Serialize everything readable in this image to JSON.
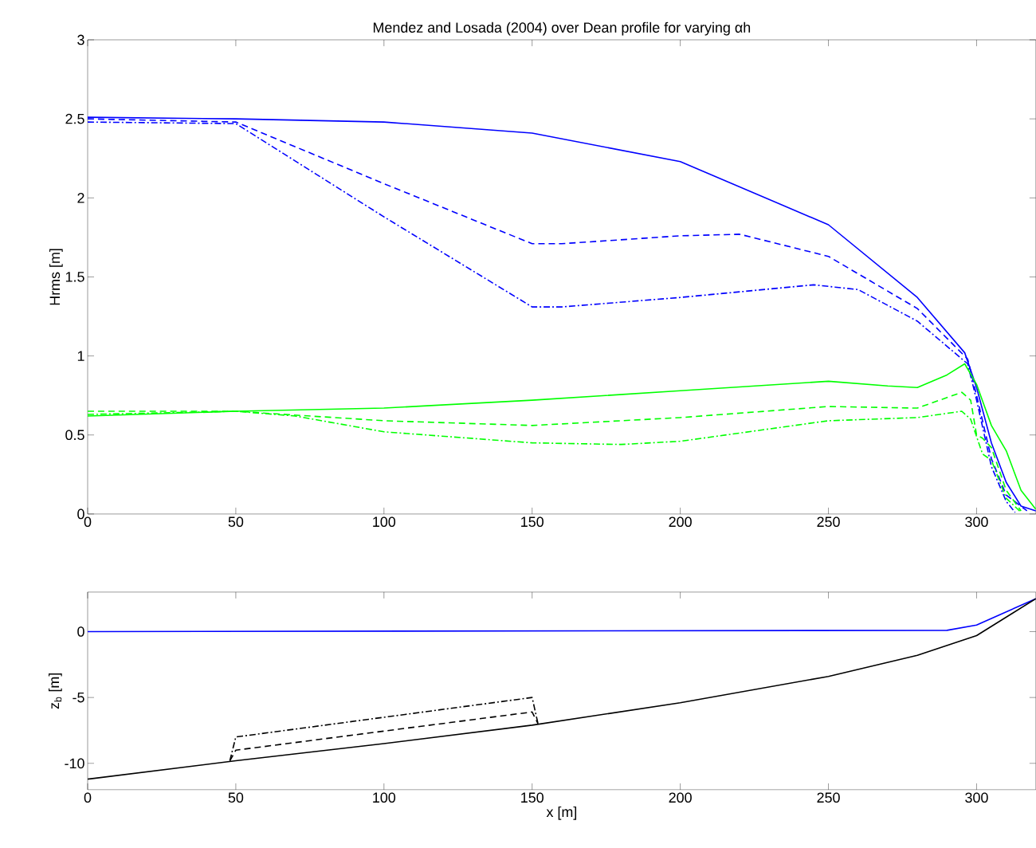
{
  "chart_data": [
    {
      "type": "line",
      "title": "Mendez and Losada (2004) over Dean profile for varying αh",
      "ylabel": "Hrms [m]",
      "xlim": [
        0,
        320
      ],
      "ylim": [
        0,
        3
      ],
      "xticks": [
        0,
        50,
        100,
        150,
        200,
        250,
        300
      ],
      "yticks": [
        0,
        0.5,
        1,
        1.5,
        2,
        2.5,
        3
      ],
      "legend": false,
      "grid": false,
      "series": [
        {
          "color": "#0000ff",
          "line_style": "solid",
          "x": [
            0,
            50,
            100,
            150,
            200,
            250,
            280,
            296,
            300,
            305,
            310,
            315,
            320
          ],
          "values": [
            2.51,
            2.5,
            2.48,
            2.41,
            2.23,
            1.83,
            1.37,
            1.02,
            0.8,
            0.45,
            0.2,
            0.05,
            0.02
          ]
        },
        {
          "color": "#0000ff",
          "line_style": "dashed",
          "x": [
            0,
            50,
            100,
            150,
            160,
            200,
            220,
            250,
            280,
            297,
            300,
            305,
            310,
            317
          ],
          "values": [
            2.5,
            2.48,
            2.09,
            1.71,
            1.71,
            1.76,
            1.77,
            1.63,
            1.3,
            0.98,
            0.75,
            0.35,
            0.12,
            0.02
          ]
        },
        {
          "color": "#0000ff",
          "line_style": "dashdot",
          "x": [
            0,
            50,
            100,
            150,
            160,
            200,
            245,
            260,
            280,
            297,
            300,
            305,
            310,
            313
          ],
          "values": [
            2.48,
            2.47,
            1.88,
            1.31,
            1.31,
            1.37,
            1.45,
            1.42,
            1.22,
            0.95,
            0.72,
            0.3,
            0.08,
            0.01
          ]
        },
        {
          "color": "#00ff00",
          "line_style": "solid",
          "x": [
            0,
            50,
            100,
            150,
            200,
            250,
            270,
            280,
            290,
            296,
            300,
            305,
            310,
            315,
            320
          ],
          "values": [
            0.62,
            0.65,
            0.67,
            0.72,
            0.78,
            0.84,
            0.81,
            0.8,
            0.88,
            0.95,
            0.82,
            0.56,
            0.4,
            0.15,
            0.03
          ]
        },
        {
          "color": "#00ff00",
          "line_style": "dashed",
          "x": [
            0,
            50,
            100,
            150,
            200,
            250,
            280,
            295,
            298,
            300,
            302,
            305,
            310,
            315
          ],
          "values": [
            0.65,
            0.65,
            0.59,
            0.56,
            0.61,
            0.68,
            0.67,
            0.77,
            0.72,
            0.5,
            0.48,
            0.42,
            0.15,
            0.02
          ]
        },
        {
          "color": "#00ff00",
          "line_style": "dashdot",
          "x": [
            0,
            50,
            70,
            100,
            150,
            180,
            200,
            250,
            280,
            295,
            298,
            302,
            305,
            310,
            315
          ],
          "values": [
            0.63,
            0.65,
            0.62,
            0.52,
            0.45,
            0.44,
            0.46,
            0.59,
            0.61,
            0.65,
            0.6,
            0.38,
            0.34,
            0.1,
            0.01
          ]
        }
      ]
    },
    {
      "type": "line",
      "xlabel": "x [m]",
      "ylabel": "z$_{b}$ [m]",
      "xlim": [
        0,
        320
      ],
      "ylim": [
        -12,
        3
      ],
      "xticks": [
        0,
        50,
        100,
        150,
        200,
        250,
        300
      ],
      "yticks": [
        -10,
        -5,
        0
      ],
      "legend": false,
      "grid": false,
      "series": [
        {
          "color": "#0000ff",
          "line_style": "solid",
          "x": [
            0,
            290,
            300,
            310,
            320
          ],
          "values": [
            0,
            0.1,
            0.5,
            1.5,
            2.5
          ]
        },
        {
          "color": "#000000",
          "line_style": "solid",
          "x": [
            0,
            50,
            100,
            150,
            200,
            250,
            280,
            300,
            310,
            320
          ],
          "values": [
            -11.2,
            -9.8,
            -8.5,
            -7.1,
            -5.4,
            -3.4,
            -1.8,
            -0.3,
            1.1,
            2.5
          ]
        },
        {
          "color": "#000000",
          "line_style": "dashed",
          "x": [
            48,
            50,
            150,
            152
          ],
          "values": [
            -9.8,
            -9.0,
            -6.1,
            -7.0
          ]
        },
        {
          "color": "#000000",
          "line_style": "dashdot",
          "x": [
            48,
            50,
            150,
            152
          ],
          "values": [
            -9.8,
            -8.0,
            -5.0,
            -7.0
          ]
        }
      ]
    }
  ]
}
